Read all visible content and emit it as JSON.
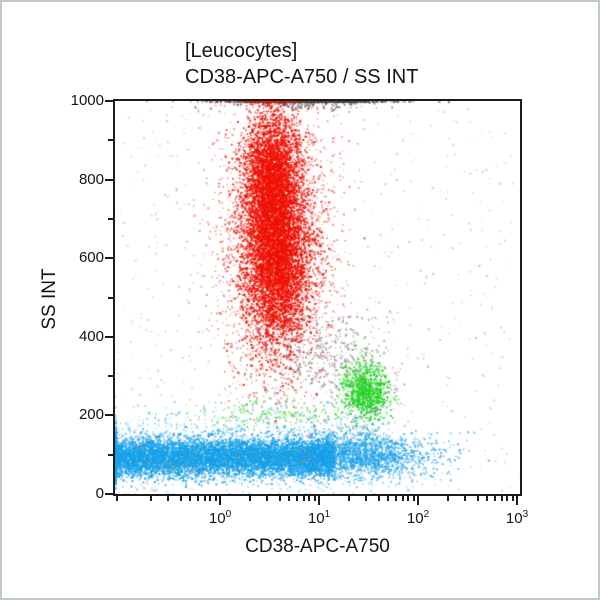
{
  "frame": {
    "background": "#ffffff",
    "border_color": "#c3c8c6"
  },
  "chart_data": {
    "type": "scatter",
    "flavor": "flow-cytometry-dot-plot",
    "title": "[Leucocytes]",
    "subtitle": "CD38-APC-A750 / SS INT",
    "grid": false,
    "legend": "none",
    "x_axis": {
      "label": "CD38-APC-A750",
      "scale": "log",
      "log_min": -1.061,
      "log_max": 3.03,
      "decade_ticks": [
        0,
        1,
        2,
        3
      ],
      "minor_tick_multipliers": [
        2,
        3,
        4,
        5,
        6,
        7,
        8,
        9
      ]
    },
    "y_axis": {
      "label": "SS INT",
      "min": 0,
      "max": 1000,
      "major_ticks": [
        0,
        200,
        400,
        600,
        800,
        1000
      ],
      "minor_ticks": [
        100,
        300,
        500,
        700,
        900
      ]
    },
    "colors": {
      "granulocytes": "#ee1100",
      "monocytes": "#1fd41f",
      "lymphocytes": "#18a0e8",
      "debris": "#999999",
      "axis": "#1b1b1b"
    },
    "populations": [
      {
        "name": "debris-scatter",
        "color": "#999999",
        "alpha": 0.45,
        "n": 700,
        "x": {
          "dist": "loguniform",
          "min": -1.05,
          "max": 2.95
        },
        "y": {
          "dist": "uniform",
          "min": 5,
          "max": 990
        }
      },
      {
        "name": "debris-mid-cloud",
        "color": "#666666",
        "alpha": 0.5,
        "n": 450,
        "x": {
          "dist": "lognormal",
          "mean": 1.0,
          "sd": 0.33
        },
        "y": {
          "dist": "normal",
          "mean": 360,
          "sd": 55
        }
      },
      {
        "name": "saturated-top-pileup",
        "color": "#444444",
        "alpha": 0.6,
        "n": 800,
        "x": {
          "dist": "lognormal",
          "mean": 0.85,
          "sd": 0.42
        },
        "y": {
          "dist": "normal",
          "mean": 1012,
          "sd": 14
        }
      },
      {
        "name": "dark-specks-granulocyte-zone",
        "color": "#333333",
        "alpha": 0.35,
        "n": 300,
        "x": {
          "dist": "lognormal",
          "mean": 0.55,
          "sd": 0.25
        },
        "y": {
          "dist": "normal",
          "mean": 650,
          "sd": 150
        }
      },
      {
        "name": "granulocytes-halo",
        "color": "#ee1100",
        "alpha": 0.45,
        "n": 2600,
        "x": {
          "dist": "lognormal",
          "mean": 0.56,
          "sd": 0.3
        },
        "y": {
          "dist": "normal",
          "mean": 650,
          "sd": 185
        }
      },
      {
        "name": "granulocytes-core",
        "color": "#ee1100",
        "alpha": 0.85,
        "n": 5200,
        "x": {
          "dist": "lognormal",
          "mean": 0.56,
          "sd": 0.17
        },
        "y": {
          "dist": "normal",
          "mean": 610,
          "sd": 115
        }
      },
      {
        "name": "granulocytes-core-upper",
        "color": "#ee1100",
        "alpha": 0.85,
        "n": 3000,
        "x": {
          "dist": "lognormal",
          "mean": 0.51,
          "sd": 0.14
        },
        "y": {
          "dist": "normal",
          "mean": 810,
          "sd": 85
        }
      },
      {
        "name": "monocytes-core",
        "color": "#1fd41f",
        "alpha": 0.8,
        "n": 950,
        "x": {
          "dist": "lognormal",
          "mean": 1.46,
          "sd": 0.12
        },
        "y": {
          "dist": "normal",
          "mean": 262,
          "sd": 38
        }
      },
      {
        "name": "monocytes-trail",
        "color": "#1fd41f",
        "alpha": 0.55,
        "n": 200,
        "x": {
          "dist": "lognormal",
          "mean": 0.55,
          "sd": 0.42
        },
        "y": {
          "dist": "normal",
          "mean": 208,
          "sd": 20
        }
      },
      {
        "name": "lymphocytes-band",
        "color": "#18a0e8",
        "alpha": 0.8,
        "n": 8500,
        "x": {
          "dist": "loguniform",
          "min": -1.35,
          "max": 1.15
        },
        "y": {
          "dist": "normal",
          "mean": 95,
          "sd": 24
        }
      },
      {
        "name": "lymphocytes-tail",
        "color": "#18a0e8",
        "alpha": 0.65,
        "n": 2000,
        "x": {
          "dist": "lognormal",
          "mean": 1.4,
          "sd": 0.38
        },
        "y": {
          "dist": "normal",
          "mean": 100,
          "sd": 28
        }
      },
      {
        "name": "lymphocytes-fuzz",
        "color": "#18a0e8",
        "alpha": 0.4,
        "n": 1500,
        "x": {
          "dist": "loguniform",
          "min": -1.2,
          "max": 1.6
        },
        "y": {
          "dist": "normal",
          "mean": 115,
          "sd": 50
        }
      },
      {
        "name": "rare-magenta-events",
        "color": "#c050c0",
        "alpha": 0.6,
        "n": 80,
        "x": {
          "dist": "lognormal",
          "mean": 1.25,
          "sd": 0.45
        },
        "y": {
          "dist": "normal",
          "mean": 240,
          "sd": 100
        }
      },
      {
        "name": "rare-orange-events",
        "color": "#ff8800",
        "alpha": 0.8,
        "n": 25,
        "x": {
          "dist": "loguniform",
          "min": -0.9,
          "max": 1.2
        },
        "y": {
          "dist": "normal",
          "mean": 90,
          "sd": 25
        }
      }
    ]
  }
}
